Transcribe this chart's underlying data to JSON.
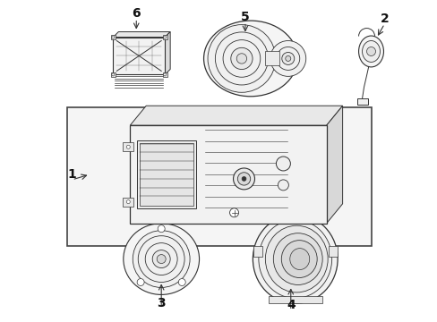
{
  "bg_color": "#ffffff",
  "line_color": "#333333",
  "label_color": "#111111",
  "fig_width": 4.89,
  "fig_height": 3.6,
  "dpi": 100
}
